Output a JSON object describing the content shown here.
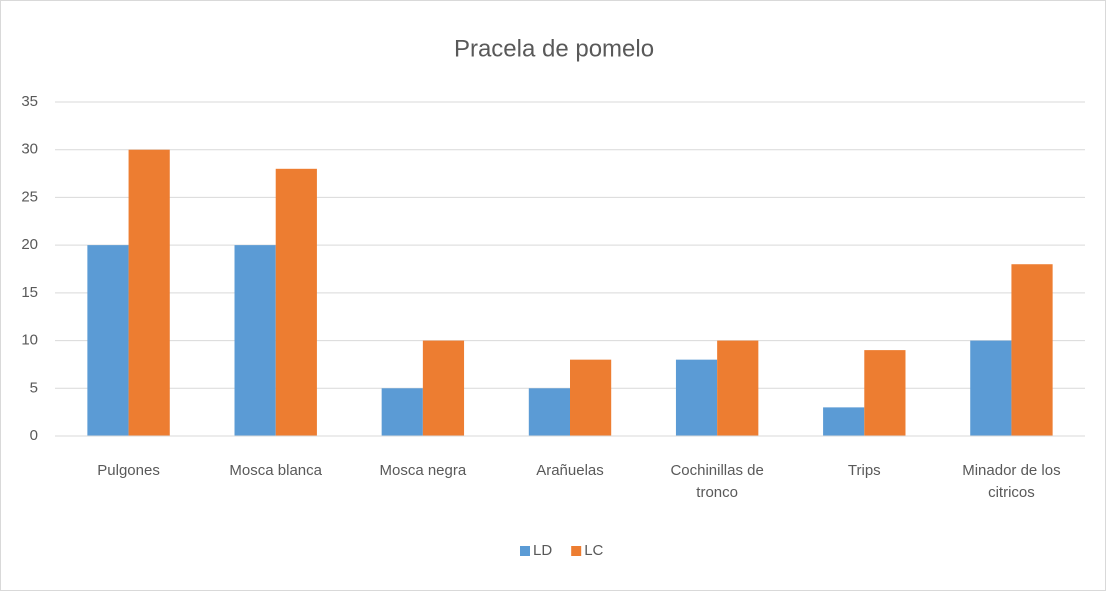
{
  "chart_data": {
    "type": "bar",
    "title": "Pracela de pomelo",
    "categories": [
      "Pulgones",
      "Mosca blanca",
      "Mosca negra",
      "Arañuelas",
      "Cochinillas de tronco",
      "Trips",
      "Minador de los citricos"
    ],
    "series": [
      {
        "name": "LD",
        "color": "#5b9bd5",
        "values": [
          20,
          20,
          5,
          5,
          8,
          3,
          10
        ]
      },
      {
        "name": "LC",
        "color": "#ed7d31",
        "values": [
          30,
          28,
          10,
          8,
          10,
          9,
          18
        ]
      }
    ],
    "ylim": [
      0,
      35
    ],
    "yticks": [
      0,
      5,
      10,
      15,
      20,
      25,
      30,
      35
    ],
    "grid": true,
    "legend": "bottom"
  }
}
